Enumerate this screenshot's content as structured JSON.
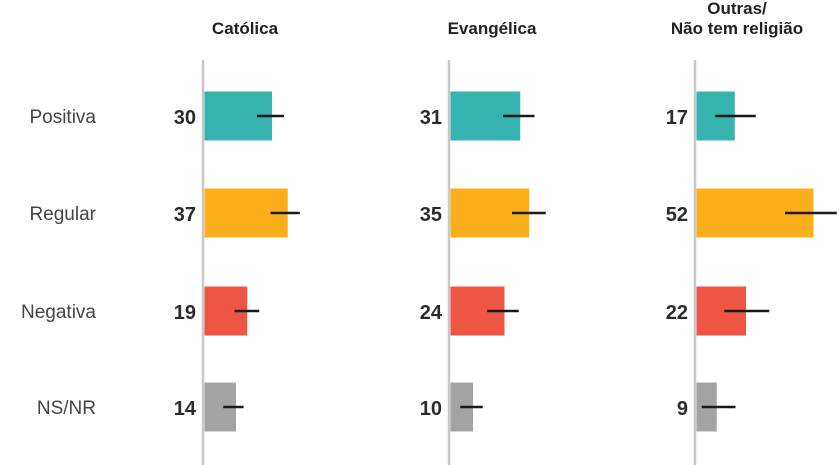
{
  "chart_data": {
    "type": "bar",
    "orientation": "horizontal",
    "categories": [
      "Positiva",
      "Regular",
      "Negativa",
      "NS/NR"
    ],
    "category_colors": [
      "#36b3ae",
      "#fdae1b",
      "#ee5542",
      "#a3a3a3"
    ],
    "panels": [
      {
        "title_lines": [
          "Católica"
        ],
        "values": [
          30,
          37,
          19,
          14
        ],
        "error_low": [
          24,
          30,
          14,
          9
        ],
        "error_high": [
          36,
          43,
          25,
          18
        ]
      },
      {
        "title_lines": [
          "Evangélica"
        ],
        "values": [
          31,
          35,
          24,
          10
        ],
        "error_low": [
          24,
          28,
          17,
          5
        ],
        "error_high": [
          38,
          43,
          31,
          15
        ]
      },
      {
        "title_lines": [
          "Outras/",
          "Não tem religião"
        ],
        "values": [
          17,
          52,
          22,
          9
        ],
        "error_low": [
          9,
          40,
          13,
          3
        ],
        "error_high": [
          27,
          63,
          33,
          18
        ]
      }
    ],
    "axis_color": "#c8c8c8",
    "errorbar_color": "#1a1a1a"
  }
}
